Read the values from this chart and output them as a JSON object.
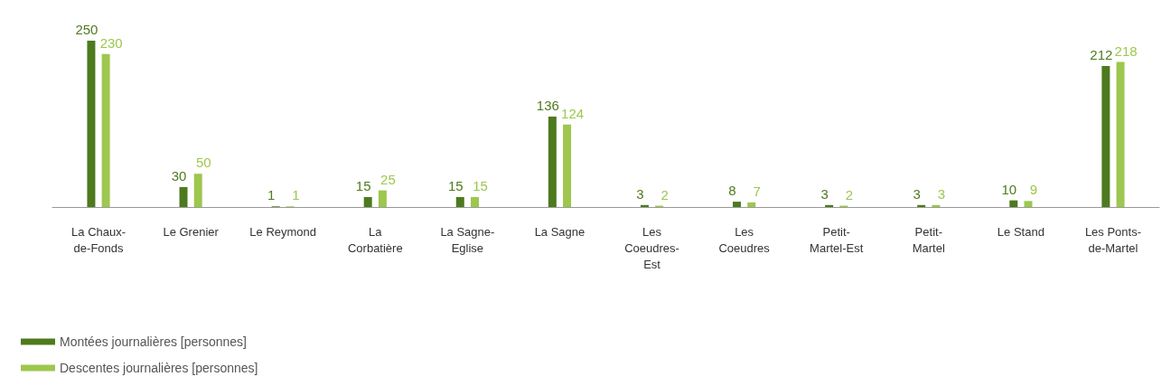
{
  "chart_data": {
    "type": "bar",
    "categories": [
      "La Chaux-de-Fonds",
      "Le Grenier",
      "Le Reymond",
      "La Corbatière",
      "La Sagne-Eglise",
      "La Sagne",
      "Les Coeudres-Est",
      "Les Coeudres",
      "Petit-Martel-Est",
      "Petit-Martel",
      "Le Stand",
      "Les Ponts-de-Martel"
    ],
    "series": [
      {
        "name": "Montées journalières [personnes]",
        "color": "#4e7a1e",
        "values": [
          250,
          30,
          1,
          15,
          15,
          136,
          3,
          8,
          3,
          3,
          10,
          212
        ]
      },
      {
        "name": "Descentes journalières [personnes]",
        "color": "#9dc74e",
        "values": [
          230,
          50,
          1,
          25,
          15,
          124,
          2,
          7,
          2,
          3,
          9,
          218
        ]
      }
    ],
    "data_labels": true,
    "legend": "bottom left",
    "grid": false
  }
}
